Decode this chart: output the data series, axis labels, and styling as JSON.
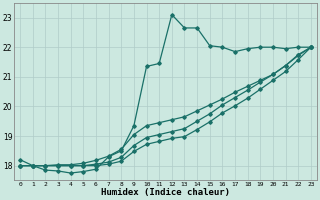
{
  "xlabel": "Humidex (Indice chaleur)",
  "bg_color": "#cce8e0",
  "line_color": "#1a7068",
  "grid_color": "#b0ccc8",
  "xlim": [
    -0.5,
    23.5
  ],
  "ylim": [
    17.5,
    23.5
  ],
  "yticks": [
    18,
    19,
    20,
    21,
    22,
    23
  ],
  "xtick_labels": [
    "0",
    "1",
    "2",
    "3",
    "4",
    "5",
    "6",
    "7",
    "8",
    "9",
    "10",
    "11",
    "12",
    "13",
    "14",
    "15",
    "16",
    "17",
    "18",
    "19",
    "20",
    "21",
    "22",
    "23"
  ],
  "xtick_positions": [
    0,
    1,
    2,
    3,
    4,
    5,
    6,
    7,
    8,
    9,
    10,
    11,
    12,
    13,
    14,
    15,
    16,
    17,
    18,
    19,
    20,
    21,
    22,
    23
  ],
  "line1_y": [
    18.2,
    18.0,
    17.85,
    17.82,
    17.75,
    17.8,
    17.88,
    18.3,
    18.5,
    19.35,
    21.35,
    21.45,
    23.1,
    22.65,
    22.65,
    22.05,
    22.0,
    21.85,
    21.95,
    22.0,
    22.0,
    21.95,
    22.0,
    22.0
  ],
  "line2_y": [
    18.0,
    18.0,
    18.0,
    18.03,
    18.03,
    18.08,
    18.18,
    18.32,
    18.55,
    19.05,
    19.35,
    19.45,
    19.55,
    19.65,
    19.85,
    20.05,
    20.25,
    20.48,
    20.68,
    20.88,
    21.08,
    21.38,
    21.75,
    22.0
  ],
  "line3_y": [
    18.0,
    18.0,
    18.0,
    18.0,
    18.0,
    18.0,
    18.05,
    18.12,
    18.28,
    18.68,
    18.95,
    19.05,
    19.15,
    19.25,
    19.5,
    19.75,
    20.05,
    20.3,
    20.55,
    20.82,
    21.08,
    21.38,
    21.72,
    22.0
  ],
  "line4_y": [
    18.0,
    18.0,
    18.0,
    18.0,
    18.0,
    18.0,
    18.0,
    18.05,
    18.15,
    18.48,
    18.72,
    18.82,
    18.92,
    18.98,
    19.22,
    19.48,
    19.78,
    20.02,
    20.28,
    20.58,
    20.88,
    21.18,
    21.58,
    22.0
  ]
}
